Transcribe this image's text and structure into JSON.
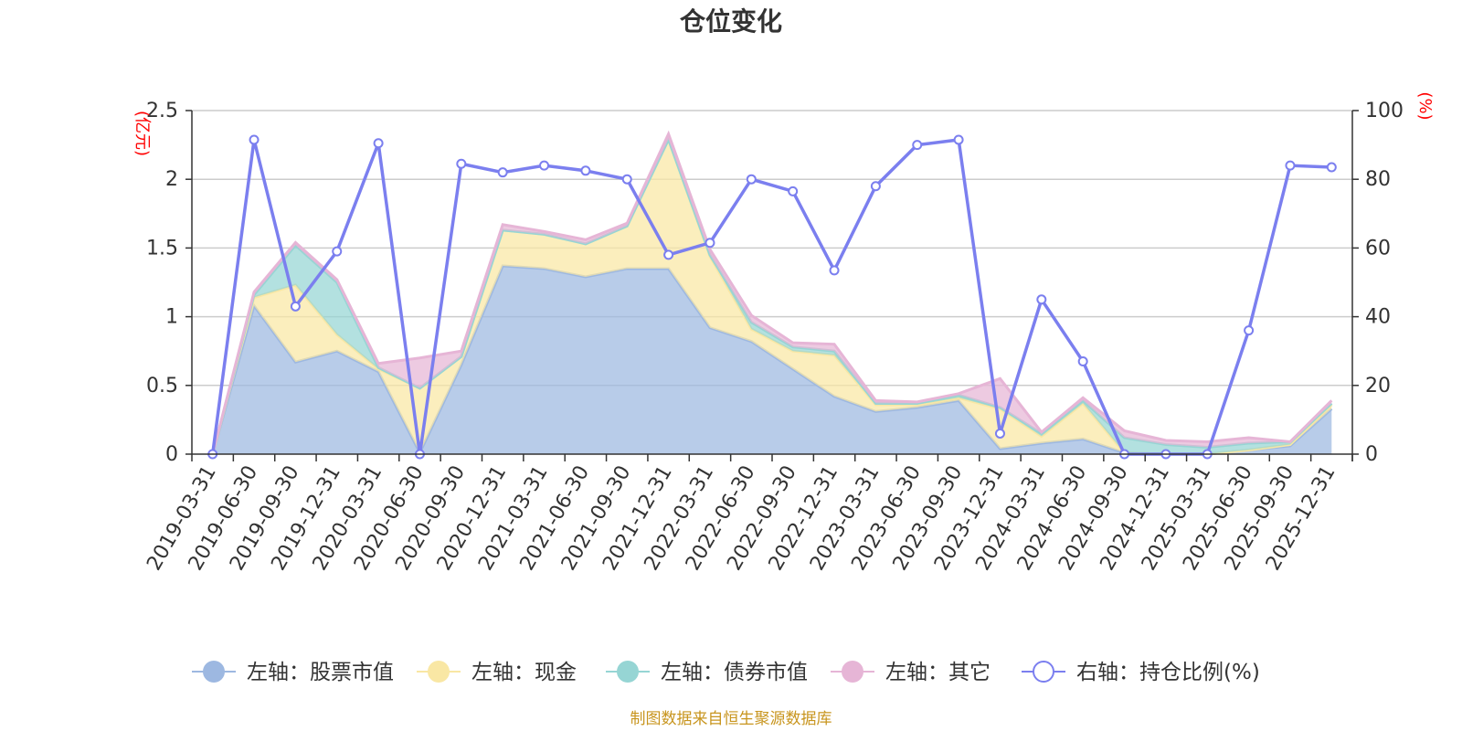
{
  "chart_data": {
    "type": "area",
    "title": "仓位变化",
    "source": "制图数据来自恒生聚源数据库",
    "left_unit": "(亿元)",
    "right_unit": "(%)",
    "left_ylim": [
      0,
      2.5
    ],
    "left_ticks": [
      "0",
      "0.5",
      "1",
      "1.5",
      "2",
      "2.5"
    ],
    "right_ylim": [
      0,
      100
    ],
    "right_ticks": [
      "0",
      "20",
      "40",
      "60",
      "80",
      "100"
    ],
    "categories": [
      "2019-03-31",
      "2019-06-30",
      "2019-09-30",
      "2019-12-31",
      "2020-03-31",
      "2020-06-30",
      "2020-09-30",
      "2020-12-31",
      "2021-03-31",
      "2021-06-30",
      "2021-09-30",
      "2021-12-31",
      "2022-03-31",
      "2022-06-30",
      "2022-09-30",
      "2022-12-31",
      "2023-03-31",
      "2023-06-30",
      "2023-09-30",
      "2023-12-31",
      "2024-03-31",
      "2024-06-30",
      "2024-09-30",
      "2024-12-31",
      "2025-03-31",
      "2025-06-30",
      "2025-09-30",
      "2025-12-31"
    ],
    "series": [
      {
        "name": "左轴：股票市值",
        "axis": "left",
        "color": "#9db8e1",
        "values": [
          0.0,
          1.08,
          0.67,
          0.75,
          0.6,
          0.01,
          0.65,
          1.37,
          1.35,
          1.29,
          1.35,
          1.35,
          0.92,
          0.82,
          0.62,
          0.42,
          0.31,
          0.34,
          0.39,
          0.04,
          0.08,
          0.11,
          0.01,
          0.0,
          0.0,
          0.03,
          0.06,
          0.33
        ]
      },
      {
        "name": "左轴：现金",
        "axis": "left",
        "color": "#f9e7a4",
        "values": [
          0.0,
          0.06,
          0.56,
          0.12,
          0.02,
          0.47,
          0.06,
          0.26,
          0.25,
          0.24,
          0.31,
          0.94,
          0.52,
          0.09,
          0.13,
          0.3,
          0.05,
          0.02,
          0.02,
          0.29,
          0.05,
          0.26,
          0.0,
          0.0,
          0.0,
          0.0,
          0.01,
          0.03
        ]
      },
      {
        "name": "左轴：债券市值",
        "axis": "left",
        "color": "#96d5d4",
        "values": [
          0.0,
          0.02,
          0.29,
          0.38,
          0.01,
          0.0,
          0.0,
          0.0,
          0.0,
          0.0,
          0.0,
          0.0,
          0.01,
          0.05,
          0.03,
          0.03,
          0.01,
          0.01,
          0.02,
          0.01,
          0.02,
          0.02,
          0.11,
          0.07,
          0.05,
          0.05,
          0.02,
          0.01
        ]
      },
      {
        "name": "左轴：其它",
        "axis": "left",
        "color": "#e6b5d6",
        "values": [
          0.0,
          0.02,
          0.02,
          0.02,
          0.03,
          0.22,
          0.04,
          0.04,
          0.02,
          0.03,
          0.02,
          0.04,
          0.04,
          0.05,
          0.03,
          0.05,
          0.02,
          0.01,
          0.01,
          0.21,
          0.01,
          0.02,
          0.05,
          0.03,
          0.04,
          0.04,
          0.0,
          0.02
        ]
      },
      {
        "name": "右轴：持仓比例(%)",
        "axis": "right",
        "color": "#7b7fef",
        "values": [
          0.0,
          91.5,
          43.0,
          59.0,
          90.5,
          0.0,
          84.5,
          82.0,
          84.0,
          82.5,
          80.0,
          58.0,
          61.5,
          80.0,
          76.5,
          53.5,
          78.0,
          90.0,
          91.5,
          6.0,
          45.0,
          27.0,
          0.0,
          0.0,
          0.0,
          36.0,
          84.0,
          83.5
        ]
      }
    ]
  }
}
